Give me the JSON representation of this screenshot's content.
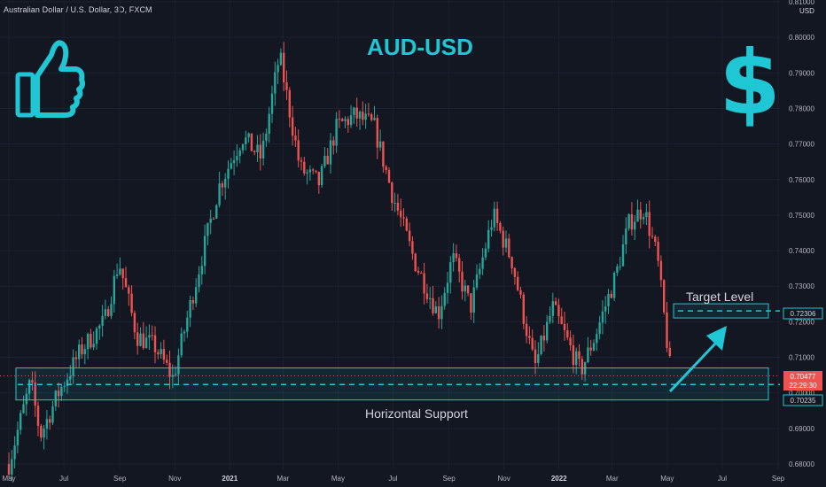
{
  "header": {
    "symbol": "Australian Dollar / U.S. Dollar, 3D, FXCM",
    "currency": "USD"
  },
  "annotations": {
    "title": "AUD-USD",
    "target_label": "Target Level",
    "support_label": "Horizontal Support"
  },
  "price_labels": {
    "target": "0.72306",
    "current": "0.70477",
    "countdown": "22:29:30",
    "support": "0.70235"
  },
  "icons": {
    "thumb": "thumbs-up-icon",
    "dollar": "dollar-sign-icon",
    "arrow": "up-right-arrow-icon"
  },
  "colors": {
    "background": "#131722",
    "up": "#26a69a",
    "down": "#ef5350",
    "accent": "#1fc7d4",
    "text": "#d1d4dc"
  },
  "chart_data": {
    "type": "candlestick",
    "title": "AUD-USD",
    "ylim": [
      0.678,
      0.812
    ],
    "y_ticks": [
      "0.81000",
      "0.80000",
      "0.79000",
      "0.78000",
      "0.77000",
      "0.76000",
      "0.75000",
      "0.74000",
      "0.73000",
      "0.72000",
      "0.71000",
      "0.70000",
      "0.69000",
      "0.68000"
    ],
    "x_ticks": [
      "May",
      "Jul",
      "Sep",
      "Nov",
      "2021",
      "Mar",
      "May",
      "Jul",
      "Sep",
      "Nov",
      "2022",
      "Mar",
      "May",
      "Jul",
      "Sep"
    ],
    "bold_x_ticks": [
      "2021",
      "2022"
    ],
    "x_range": [
      "2020-05",
      "2022-09"
    ],
    "close_path": [
      [
        "2020-05-01",
        0.68
      ],
      [
        "2020-05-25",
        0.703
      ],
      [
        "2020-06-05",
        0.688
      ],
      [
        "2020-06-25",
        0.7
      ],
      [
        "2020-07-20",
        0.712
      ],
      [
        "2020-08-15",
        0.72
      ],
      [
        "2020-08-31",
        0.737
      ],
      [
        "2020-09-20",
        0.716
      ],
      [
        "2020-10-10",
        0.713
      ],
      [
        "2020-10-30",
        0.704
      ],
      [
        "2020-11-25",
        0.732
      ],
      [
        "2020-12-20",
        0.758
      ],
      [
        "2021-01-15",
        0.772
      ],
      [
        "2021-02-05",
        0.766
      ],
      [
        "2021-02-25",
        0.795
      ],
      [
        "2021-03-20",
        0.763
      ],
      [
        "2021-04-10",
        0.759
      ],
      [
        "2021-04-30",
        0.775
      ],
      [
        "2021-05-20",
        0.778
      ],
      [
        "2021-06-10",
        0.775
      ],
      [
        "2021-06-30",
        0.756
      ],
      [
        "2021-07-25",
        0.737
      ],
      [
        "2021-08-20",
        0.722
      ],
      [
        "2021-09-05",
        0.738
      ],
      [
        "2021-09-25",
        0.724
      ],
      [
        "2021-10-20",
        0.75
      ],
      [
        "2021-11-10",
        0.737
      ],
      [
        "2021-12-05",
        0.707
      ],
      [
        "2021-12-25",
        0.724
      ],
      [
        "2022-01-25",
        0.706
      ],
      [
        "2022-02-10",
        0.716
      ],
      [
        "2022-03-05",
        0.733
      ],
      [
        "2022-03-20",
        0.748
      ],
      [
        "2022-04-05",
        0.752
      ],
      [
        "2022-04-20",
        0.738
      ],
      [
        "2022-05-05",
        0.705
      ]
    ],
    "levels": [
      {
        "name": "Target Level",
        "value": 0.72306
      },
      {
        "name": "Horizontal Support",
        "value": 0.70235,
        "zone": [
          0.698,
          0.707
        ]
      }
    ],
    "current_price": 0.70477
  }
}
